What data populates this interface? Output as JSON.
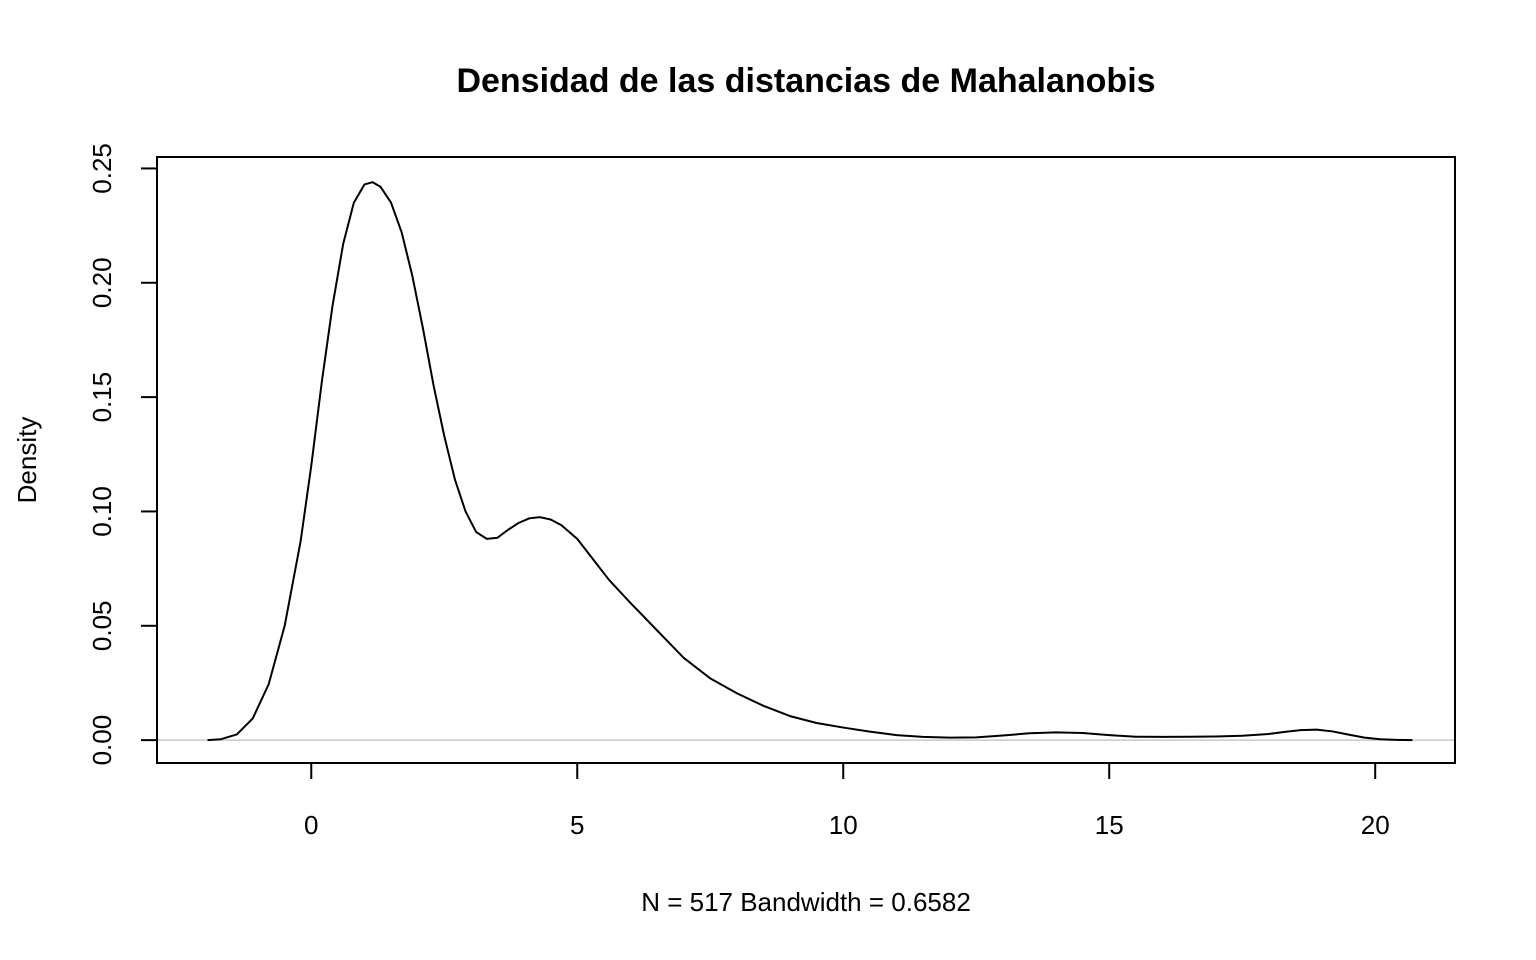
{
  "chart_data": {
    "type": "line",
    "title": "Densidad de las distancias de Mahalanobis",
    "xlabel": "N = 517   Bandwidth = 0.6582",
    "ylabel": "Density",
    "xlim": [
      -2.9,
      21.5
    ],
    "ylim": [
      -0.01,
      0.255
    ],
    "x_ticks": [
      0,
      5,
      10,
      15,
      20
    ],
    "x_tick_labels": [
      "0",
      "5",
      "10",
      "15",
      "20"
    ],
    "y_ticks": [
      0.0,
      0.05,
      0.1,
      0.15,
      0.2,
      0.25
    ],
    "y_tick_labels": [
      "0.00",
      "0.05",
      "0.10",
      "0.15",
      "0.20",
      "0.25"
    ],
    "zero_line": true,
    "series": [
      {
        "x": [
          -1.95,
          -1.7,
          -1.4,
          -1.1,
          -0.8,
          -0.5,
          -0.2,
          0.0,
          0.2,
          0.4,
          0.6,
          0.8,
          1.0,
          1.15,
          1.3,
          1.5,
          1.7,
          1.9,
          2.1,
          2.3,
          2.5,
          2.7,
          2.9,
          3.1,
          3.3,
          3.5,
          3.7,
          3.9,
          4.1,
          4.3,
          4.5,
          4.7,
          5.0,
          5.3,
          5.6,
          6.0,
          6.5,
          7.0,
          7.5,
          8.0,
          8.5,
          9.0,
          9.5,
          10.0,
          10.5,
          11.0,
          11.5,
          12.0,
          12.5,
          13.0,
          13.5,
          14.0,
          14.5,
          15.0,
          15.5,
          16.0,
          16.5,
          17.0,
          17.5,
          18.0,
          18.3,
          18.6,
          18.9,
          19.2,
          19.5,
          19.8,
          20.1,
          20.4,
          20.7
        ],
        "values": [
          0.0,
          0.0004,
          0.0025,
          0.0095,
          0.0245,
          0.05,
          0.087,
          0.12,
          0.157,
          0.19,
          0.217,
          0.235,
          0.243,
          0.244,
          0.242,
          0.235,
          0.222,
          0.203,
          0.18,
          0.155,
          0.133,
          0.114,
          0.1,
          0.091,
          0.088,
          0.0885,
          0.092,
          0.095,
          0.097,
          0.0975,
          0.0965,
          0.094,
          0.088,
          0.079,
          0.07,
          0.06,
          0.048,
          0.036,
          0.027,
          0.0205,
          0.015,
          0.0105,
          0.0075,
          0.0055,
          0.0037,
          0.0022,
          0.0014,
          0.0011,
          0.0012,
          0.002,
          0.003,
          0.0034,
          0.0031,
          0.0022,
          0.0015,
          0.0014,
          0.0015,
          0.0016,
          0.0019,
          0.0027,
          0.0036,
          0.0044,
          0.0046,
          0.0038,
          0.0024,
          0.0011,
          0.0004,
          0.0001,
          0.0
        ]
      }
    ]
  }
}
